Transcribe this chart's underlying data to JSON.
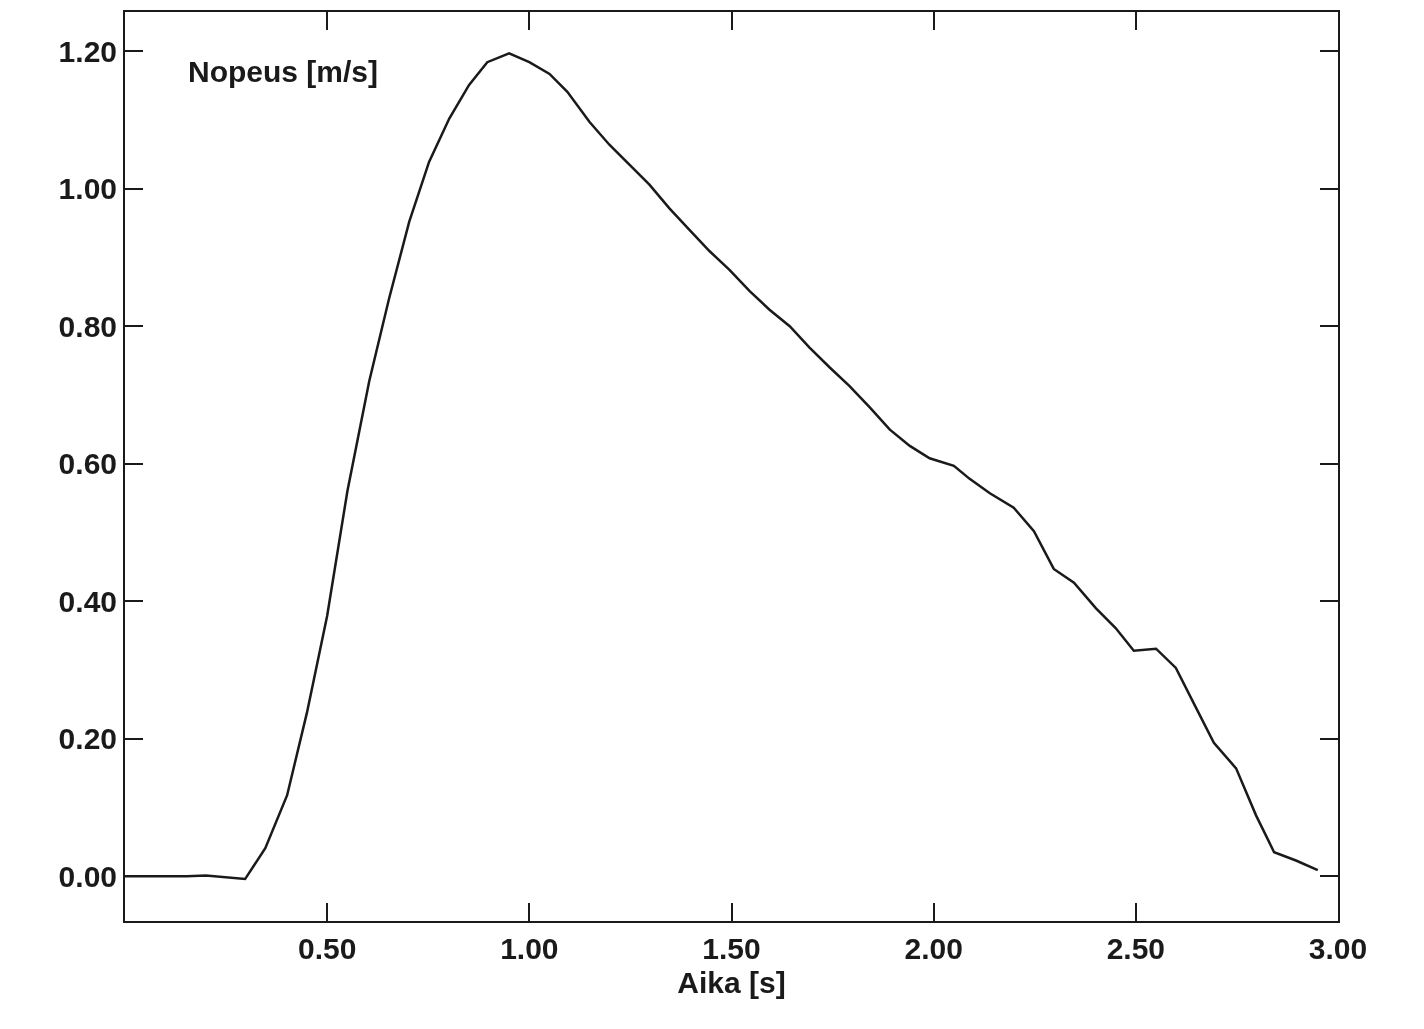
{
  "chart_data": {
    "type": "line",
    "xlabel": "Aika [s]",
    "ylabel": "Nopeus [m/s]",
    "x": [
      0,
      0.153,
      0.2,
      0.297,
      0.347,
      0.401,
      0.45,
      0.5,
      0.55,
      0.604,
      0.653,
      0.703,
      0.752,
      0.802,
      0.851,
      0.896,
      0.95,
      1.0,
      1.05,
      1.094,
      1.149,
      1.198,
      1.297,
      1.347,
      1.396,
      1.446,
      1.495,
      1.545,
      1.594,
      1.644,
      1.693,
      1.743,
      1.792,
      1.842,
      1.891,
      1.941,
      1.99,
      2.05,
      2.089,
      2.139,
      2.198,
      2.248,
      2.297,
      2.347,
      2.401,
      2.45,
      2.495,
      2.55,
      2.599,
      2.649,
      2.693,
      2.748,
      2.797,
      2.842,
      2.896,
      2.95
    ],
    "series": [
      {
        "color": "#1a1a1a",
        "values": [
          0,
          0,
          0.001,
          -0.004,
          0.041,
          0.118,
          0.238,
          0.379,
          0.56,
          0.72,
          0.84,
          0.952,
          1.039,
          1.102,
          1.151,
          1.184,
          1.197,
          1.184,
          1.167,
          1.141,
          1.097,
          1.064,
          1.006,
          0.971,
          0.94,
          0.909,
          0.882,
          0.851,
          0.824,
          0.8,
          0.769,
          0.74,
          0.713,
          0.682,
          0.65,
          0.626,
          0.608,
          0.597,
          0.578,
          0.557,
          0.536,
          0.502,
          0.447,
          0.427,
          0.39,
          0.361,
          0.328,
          0.331,
          0.303,
          0.245,
          0.194,
          0.157,
          0.089,
          0.035,
          0.023,
          0.009
        ]
      }
    ],
    "xlim": [
      0,
      3.0
    ],
    "ylim": [
      -0.065,
      1.257
    ],
    "xticks": [
      {
        "value": 0.5,
        "label": "0.50"
      },
      {
        "value": 1.0,
        "label": "1.00"
      },
      {
        "value": 1.5,
        "label": "1.50"
      },
      {
        "value": 2.0,
        "label": "2.00"
      },
      {
        "value": 2.5,
        "label": "2.50"
      },
      {
        "value": 3.0,
        "label": "3.00"
      }
    ],
    "yticks": [
      {
        "value": 0,
        "label": "0.00"
      },
      {
        "value": 0.2,
        "label": "0.20"
      },
      {
        "value": 0.4,
        "label": "0.40"
      },
      {
        "value": 0.6,
        "label": "0.60"
      },
      {
        "value": 0.8,
        "label": "0.80"
      },
      {
        "value": 1.0,
        "label": "1.00"
      },
      {
        "value": 1.2,
        "label": "1.20"
      }
    ],
    "marker": "none",
    "line_style": "solid"
  }
}
